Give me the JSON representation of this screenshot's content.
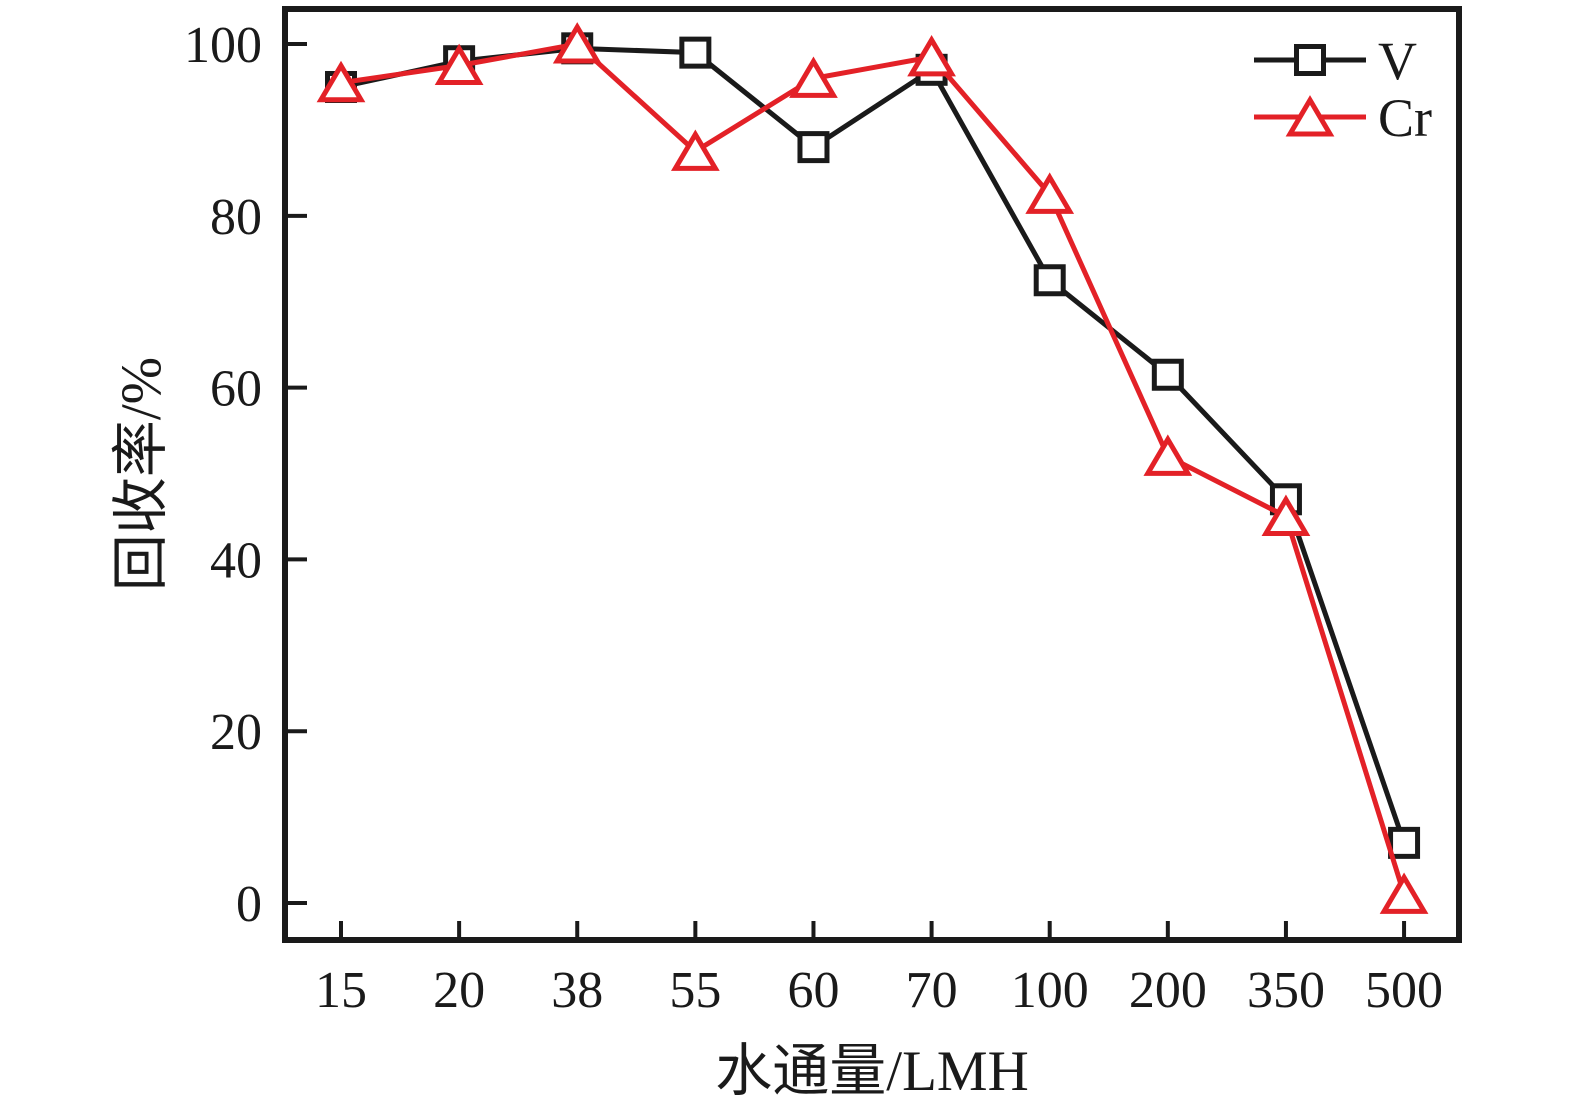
{
  "figure": {
    "background": "#ffffff",
    "frame_color": "#1a1a1a",
    "marker_fill": "#ffffff"
  },
  "chart_data": {
    "type": "line",
    "title": "",
    "xlabel": "水通量/LMH",
    "ylabel": "回收率/%",
    "categories": [
      "15",
      "20",
      "38",
      "55",
      "60",
      "70",
      "100",
      "200",
      "350",
      "500"
    ],
    "y_ticks": [
      "0",
      "20",
      "40",
      "60",
      "80",
      "100"
    ],
    "ylim": [
      0,
      100
    ],
    "grid": false,
    "legend_position": "top-right",
    "series": [
      {
        "name": "V",
        "color": "#1a1a1a",
        "marker": "square",
        "values": [
          95,
          98,
          99.5,
          99,
          88,
          97,
          72.5,
          61.5,
          47,
          7
        ]
      },
      {
        "name": "Cr",
        "color": "#e32127",
        "marker": "triangle",
        "values": [
          95.5,
          97.5,
          100,
          87.5,
          96,
          98.5,
          82.5,
          52,
          45,
          1
        ]
      }
    ]
  }
}
